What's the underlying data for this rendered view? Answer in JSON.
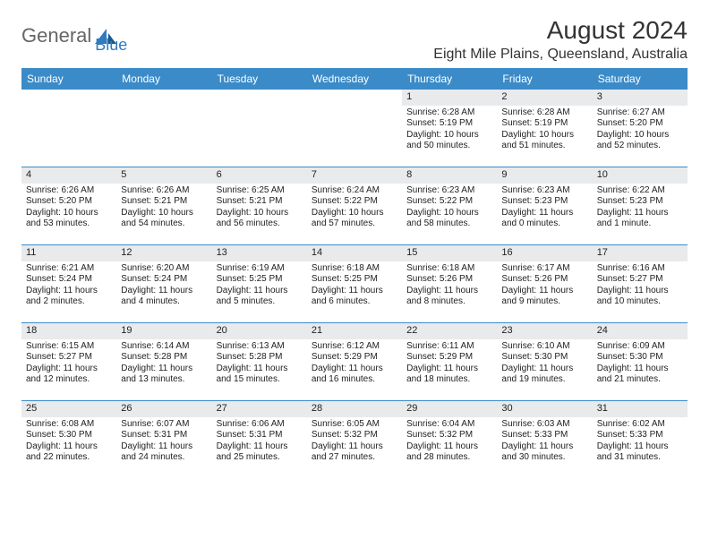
{
  "logo": {
    "text1": "General",
    "text2": "Blue"
  },
  "title": "August 2024",
  "location": "Eight Mile Plains, Queensland, Australia",
  "colors": {
    "header_bg": "#3b8bc8",
    "header_text": "#ffffff",
    "daynum_bg": "#e9eaec",
    "row_border": "#3b8bc8",
    "logo_general": "#666666",
    "logo_blue": "#2f7bbf"
  },
  "day_headers": [
    "Sunday",
    "Monday",
    "Tuesday",
    "Wednesday",
    "Thursday",
    "Friday",
    "Saturday"
  ],
  "weeks": [
    [
      {
        "empty": true
      },
      {
        "empty": true
      },
      {
        "empty": true
      },
      {
        "empty": true
      },
      {
        "num": "1",
        "sunrise": "Sunrise: 6:28 AM",
        "sunset": "Sunset: 5:19 PM",
        "daylight": "Daylight: 10 hours and 50 minutes."
      },
      {
        "num": "2",
        "sunrise": "Sunrise: 6:28 AM",
        "sunset": "Sunset: 5:19 PM",
        "daylight": "Daylight: 10 hours and 51 minutes."
      },
      {
        "num": "3",
        "sunrise": "Sunrise: 6:27 AM",
        "sunset": "Sunset: 5:20 PM",
        "daylight": "Daylight: 10 hours and 52 minutes."
      }
    ],
    [
      {
        "num": "4",
        "sunrise": "Sunrise: 6:26 AM",
        "sunset": "Sunset: 5:20 PM",
        "daylight": "Daylight: 10 hours and 53 minutes."
      },
      {
        "num": "5",
        "sunrise": "Sunrise: 6:26 AM",
        "sunset": "Sunset: 5:21 PM",
        "daylight": "Daylight: 10 hours and 54 minutes."
      },
      {
        "num": "6",
        "sunrise": "Sunrise: 6:25 AM",
        "sunset": "Sunset: 5:21 PM",
        "daylight": "Daylight: 10 hours and 56 minutes."
      },
      {
        "num": "7",
        "sunrise": "Sunrise: 6:24 AM",
        "sunset": "Sunset: 5:22 PM",
        "daylight": "Daylight: 10 hours and 57 minutes."
      },
      {
        "num": "8",
        "sunrise": "Sunrise: 6:23 AM",
        "sunset": "Sunset: 5:22 PM",
        "daylight": "Daylight: 10 hours and 58 minutes."
      },
      {
        "num": "9",
        "sunrise": "Sunrise: 6:23 AM",
        "sunset": "Sunset: 5:23 PM",
        "daylight": "Daylight: 11 hours and 0 minutes."
      },
      {
        "num": "10",
        "sunrise": "Sunrise: 6:22 AM",
        "sunset": "Sunset: 5:23 PM",
        "daylight": "Daylight: 11 hours and 1 minute."
      }
    ],
    [
      {
        "num": "11",
        "sunrise": "Sunrise: 6:21 AM",
        "sunset": "Sunset: 5:24 PM",
        "daylight": "Daylight: 11 hours and 2 minutes."
      },
      {
        "num": "12",
        "sunrise": "Sunrise: 6:20 AM",
        "sunset": "Sunset: 5:24 PM",
        "daylight": "Daylight: 11 hours and 4 minutes."
      },
      {
        "num": "13",
        "sunrise": "Sunrise: 6:19 AM",
        "sunset": "Sunset: 5:25 PM",
        "daylight": "Daylight: 11 hours and 5 minutes."
      },
      {
        "num": "14",
        "sunrise": "Sunrise: 6:18 AM",
        "sunset": "Sunset: 5:25 PM",
        "daylight": "Daylight: 11 hours and 6 minutes."
      },
      {
        "num": "15",
        "sunrise": "Sunrise: 6:18 AM",
        "sunset": "Sunset: 5:26 PM",
        "daylight": "Daylight: 11 hours and 8 minutes."
      },
      {
        "num": "16",
        "sunrise": "Sunrise: 6:17 AM",
        "sunset": "Sunset: 5:26 PM",
        "daylight": "Daylight: 11 hours and 9 minutes."
      },
      {
        "num": "17",
        "sunrise": "Sunrise: 6:16 AM",
        "sunset": "Sunset: 5:27 PM",
        "daylight": "Daylight: 11 hours and 10 minutes."
      }
    ],
    [
      {
        "num": "18",
        "sunrise": "Sunrise: 6:15 AM",
        "sunset": "Sunset: 5:27 PM",
        "daylight": "Daylight: 11 hours and 12 minutes."
      },
      {
        "num": "19",
        "sunrise": "Sunrise: 6:14 AM",
        "sunset": "Sunset: 5:28 PM",
        "daylight": "Daylight: 11 hours and 13 minutes."
      },
      {
        "num": "20",
        "sunrise": "Sunrise: 6:13 AM",
        "sunset": "Sunset: 5:28 PM",
        "daylight": "Daylight: 11 hours and 15 minutes."
      },
      {
        "num": "21",
        "sunrise": "Sunrise: 6:12 AM",
        "sunset": "Sunset: 5:29 PM",
        "daylight": "Daylight: 11 hours and 16 minutes."
      },
      {
        "num": "22",
        "sunrise": "Sunrise: 6:11 AM",
        "sunset": "Sunset: 5:29 PM",
        "daylight": "Daylight: 11 hours and 18 minutes."
      },
      {
        "num": "23",
        "sunrise": "Sunrise: 6:10 AM",
        "sunset": "Sunset: 5:30 PM",
        "daylight": "Daylight: 11 hours and 19 minutes."
      },
      {
        "num": "24",
        "sunrise": "Sunrise: 6:09 AM",
        "sunset": "Sunset: 5:30 PM",
        "daylight": "Daylight: 11 hours and 21 minutes."
      }
    ],
    [
      {
        "num": "25",
        "sunrise": "Sunrise: 6:08 AM",
        "sunset": "Sunset: 5:30 PM",
        "daylight": "Daylight: 11 hours and 22 minutes."
      },
      {
        "num": "26",
        "sunrise": "Sunrise: 6:07 AM",
        "sunset": "Sunset: 5:31 PM",
        "daylight": "Daylight: 11 hours and 24 minutes."
      },
      {
        "num": "27",
        "sunrise": "Sunrise: 6:06 AM",
        "sunset": "Sunset: 5:31 PM",
        "daylight": "Daylight: 11 hours and 25 minutes."
      },
      {
        "num": "28",
        "sunrise": "Sunrise: 6:05 AM",
        "sunset": "Sunset: 5:32 PM",
        "daylight": "Daylight: 11 hours and 27 minutes."
      },
      {
        "num": "29",
        "sunrise": "Sunrise: 6:04 AM",
        "sunset": "Sunset: 5:32 PM",
        "daylight": "Daylight: 11 hours and 28 minutes."
      },
      {
        "num": "30",
        "sunrise": "Sunrise: 6:03 AM",
        "sunset": "Sunset: 5:33 PM",
        "daylight": "Daylight: 11 hours and 30 minutes."
      },
      {
        "num": "31",
        "sunrise": "Sunrise: 6:02 AM",
        "sunset": "Sunset: 5:33 PM",
        "daylight": "Daylight: 11 hours and 31 minutes."
      }
    ]
  ]
}
